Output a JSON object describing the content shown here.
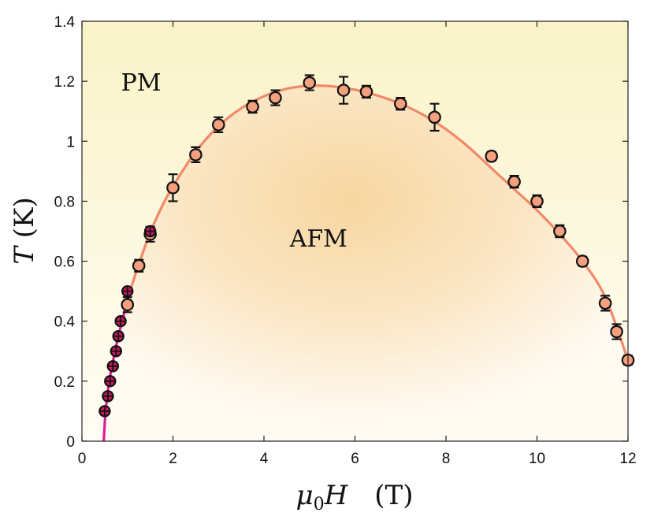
{
  "chart_data": {
    "type": "scatter",
    "title": "",
    "xlabel": "μ0H (T)",
    "ylabel": "T (K)",
    "xlim": [
      0,
      12
    ],
    "ylim": [
      0,
      1.4
    ],
    "x_ticks": [
      0,
      2,
      4,
      6,
      8,
      10,
      12
    ],
    "y_ticks": [
      0,
      0.2,
      0.4,
      0.6,
      0.8,
      1,
      1.2,
      1.4
    ],
    "x_tick_labels": [
      "0",
      "2",
      "4",
      "6",
      "8",
      "10",
      "12"
    ],
    "y_tick_labels": [
      "0",
      "0.2",
      "0.4",
      "0.6",
      "0.8",
      "1",
      "1.2",
      "1.4"
    ],
    "annotations": [
      {
        "text": "PM",
        "x": 1.3,
        "y": 1.2
      },
      {
        "text": "AFM",
        "x": 5.2,
        "y": 0.68
      }
    ],
    "colors": {
      "marker_fill": "#f4a07e",
      "marker_edge": "#111111",
      "curve": "#f08a6a",
      "low_field_line": "#e0199a",
      "cross_marker": "#c2185b",
      "background_top": "#faf3c8",
      "background_mid": "#f7d6a0"
    },
    "series": [
      {
        "name": "open-circles",
        "points": [
          {
            "x": 1.0,
            "y": 0.455,
            "err": 0.025
          },
          {
            "x": 1.25,
            "y": 0.585,
            "err": 0.02
          },
          {
            "x": 1.5,
            "y": 0.69,
            "err": 0.025
          },
          {
            "x": 2.0,
            "y": 0.845,
            "err": 0.045
          },
          {
            "x": 2.5,
            "y": 0.955,
            "err": 0.025
          },
          {
            "x": 3.0,
            "y": 1.055,
            "err": 0.025
          },
          {
            "x": 3.75,
            "y": 1.115,
            "err": 0.02
          },
          {
            "x": 4.25,
            "y": 1.145,
            "err": 0.025
          },
          {
            "x": 5.0,
            "y": 1.195,
            "err": 0.025
          },
          {
            "x": 5.75,
            "y": 1.17,
            "err": 0.045
          },
          {
            "x": 6.25,
            "y": 1.165,
            "err": 0.02
          },
          {
            "x": 7.0,
            "y": 1.125,
            "err": 0.02
          },
          {
            "x": 7.75,
            "y": 1.08,
            "err": 0.045
          },
          {
            "x": 9.0,
            "y": 0.95,
            "err": 0.015
          },
          {
            "x": 9.5,
            "y": 0.865,
            "err": 0.02
          },
          {
            "x": 10.0,
            "y": 0.8,
            "err": 0.02
          },
          {
            "x": 10.5,
            "y": 0.7,
            "err": 0.02
          },
          {
            "x": 11.0,
            "y": 0.6,
            "err": 0.015
          },
          {
            "x": 11.5,
            "y": 0.46,
            "err": 0.025
          },
          {
            "x": 11.75,
            "y": 0.365,
            "err": 0.025
          },
          {
            "x": 12.0,
            "y": 0.27,
            "err": 0.015
          }
        ]
      },
      {
        "name": "crossed-circles",
        "points": [
          {
            "x": 0.5,
            "y": 0.1
          },
          {
            "x": 0.57,
            "y": 0.15
          },
          {
            "x": 0.62,
            "y": 0.2
          },
          {
            "x": 0.68,
            "y": 0.25
          },
          {
            "x": 0.75,
            "y": 0.3
          },
          {
            "x": 0.8,
            "y": 0.35
          },
          {
            "x": 0.85,
            "y": 0.4
          },
          {
            "x": 1.0,
            "y": 0.5
          },
          {
            "x": 1.5,
            "y": 0.7
          }
        ]
      }
    ],
    "boundary_curve": {
      "x": [
        0.97,
        1.1,
        1.25,
        1.5,
        1.75,
        2.0,
        2.5,
        3.0,
        3.5,
        4.0,
        4.5,
        5.0,
        5.5,
        6.0,
        6.5,
        7.0,
        7.5,
        8.0,
        8.5,
        9.0,
        9.5,
        10.0,
        10.5,
        11.0,
        11.5,
        12.0
      ],
      "y": [
        0.455,
        0.52,
        0.59,
        0.695,
        0.78,
        0.85,
        0.965,
        1.05,
        1.11,
        1.15,
        1.175,
        1.185,
        1.183,
        1.172,
        1.152,
        1.125,
        1.088,
        1.04,
        0.98,
        0.91,
        0.84,
        0.77,
        0.69,
        0.6,
        0.48,
        0.27
      ]
    },
    "low_field_line": {
      "x": [
        0.48,
        0.52,
        0.6,
        0.7,
        0.8,
        0.9,
        0.97
      ],
      "y": [
        0.0,
        0.1,
        0.2,
        0.28,
        0.35,
        0.41,
        0.455
      ]
    }
  }
}
